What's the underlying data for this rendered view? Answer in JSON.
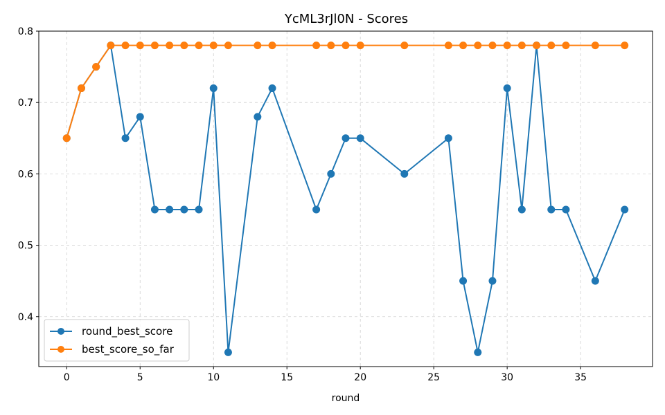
{
  "chart_data": {
    "type": "line",
    "title": "YcML3rJl0N - Scores",
    "xlabel": "round",
    "ylabel": "",
    "xlim": [
      -1.9,
      39.9
    ],
    "ylim": [
      0.33,
      0.8
    ],
    "xticks": [
      0,
      5,
      10,
      15,
      20,
      25,
      30,
      35
    ],
    "yticks": [
      0.4,
      0.5,
      0.6,
      0.7,
      0.8
    ],
    "grid": true,
    "legend_position": "bottom-left",
    "series": [
      {
        "name": "round_best_score",
        "color": "#1f77b4",
        "x": [
          0,
          1,
          2,
          3,
          4,
          5,
          6,
          7,
          8,
          9,
          10,
          11,
          13,
          14,
          17,
          18,
          19,
          20,
          23,
          26,
          27,
          28,
          29,
          30,
          31,
          32,
          33,
          34,
          36,
          38
        ],
        "values": [
          0.65,
          0.72,
          0.75,
          0.78,
          0.65,
          0.68,
          0.55,
          0.55,
          0.55,
          0.55,
          0.72,
          0.35,
          0.68,
          0.72,
          0.55,
          0.6,
          0.65,
          0.65,
          0.6,
          0.65,
          0.45,
          0.35,
          0.45,
          0.72,
          0.55,
          0.78,
          0.55,
          0.55,
          0.45,
          0.55
        ]
      },
      {
        "name": "best_score_so_far",
        "color": "#ff7f0e",
        "x": [
          0,
          1,
          2,
          3,
          4,
          5,
          6,
          7,
          8,
          9,
          10,
          11,
          13,
          14,
          17,
          18,
          19,
          20,
          23,
          26,
          27,
          28,
          29,
          30,
          31,
          32,
          33,
          34,
          36,
          38
        ],
        "values": [
          0.65,
          0.72,
          0.75,
          0.78,
          0.78,
          0.78,
          0.78,
          0.78,
          0.78,
          0.78,
          0.78,
          0.78,
          0.78,
          0.78,
          0.78,
          0.78,
          0.78,
          0.78,
          0.78,
          0.78,
          0.78,
          0.78,
          0.78,
          0.78,
          0.78,
          0.78,
          0.78,
          0.78,
          0.78,
          0.78
        ]
      }
    ]
  }
}
